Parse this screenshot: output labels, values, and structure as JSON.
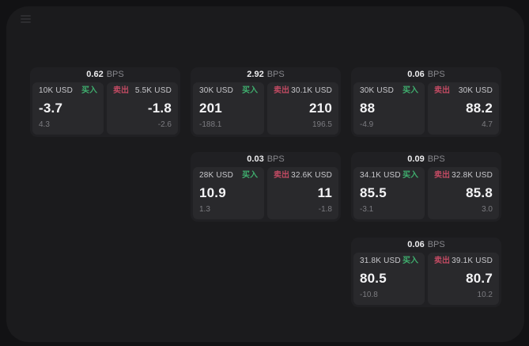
{
  "surface": {
    "bg": "#1b1b1d",
    "outer_bg": "#121214"
  },
  "labels": {
    "bps_suffix": "BPS",
    "buy": "买入",
    "sell": "卖出"
  },
  "colors": {
    "buy_accent": "#3fae6e",
    "sell_accent": "#c04a62"
  },
  "cards": [
    {
      "bps": "0.62",
      "grid": {
        "col": 0,
        "row": 0
      },
      "buy": {
        "amount": "10K USD",
        "value": "-3.7",
        "sub": "4.3"
      },
      "sell": {
        "amount": "5.5K USD",
        "value": "-1.8",
        "sub": "-2.6"
      }
    },
    {
      "bps": "2.92",
      "grid": {
        "col": 1,
        "row": 0
      },
      "buy": {
        "amount": "30K USD",
        "value": "201",
        "sub": "-188.1"
      },
      "sell": {
        "amount": "30.1K USD",
        "value": "210",
        "sub": "196.5"
      }
    },
    {
      "bps": "0.06",
      "grid": {
        "col": 2,
        "row": 0
      },
      "buy": {
        "amount": "30K USD",
        "value": "88",
        "sub": "-4.9"
      },
      "sell": {
        "amount": "30K USD",
        "value": "88.2",
        "sub": "4.7"
      }
    },
    {
      "bps": "0.03",
      "grid": {
        "col": 1,
        "row": 1
      },
      "buy": {
        "amount": "28K USD",
        "value": "10.9",
        "sub": "1.3"
      },
      "sell": {
        "amount": "32.6K USD",
        "value": "11",
        "sub": "-1.8"
      }
    },
    {
      "bps": "0.09",
      "grid": {
        "col": 2,
        "row": 1
      },
      "buy": {
        "amount": "34.1K USD",
        "value": "85.5",
        "sub": "-3.1"
      },
      "sell": {
        "amount": "32.8K USD",
        "value": "85.8",
        "sub": "3.0"
      }
    },
    {
      "bps": "0.06",
      "grid": {
        "col": 2,
        "row": 2
      },
      "buy": {
        "amount": "31.8K USD",
        "value": "80.5",
        "sub": "-10.8"
      },
      "sell": {
        "amount": "39.1K USD",
        "value": "80.7",
        "sub": "10.2"
      }
    }
  ]
}
